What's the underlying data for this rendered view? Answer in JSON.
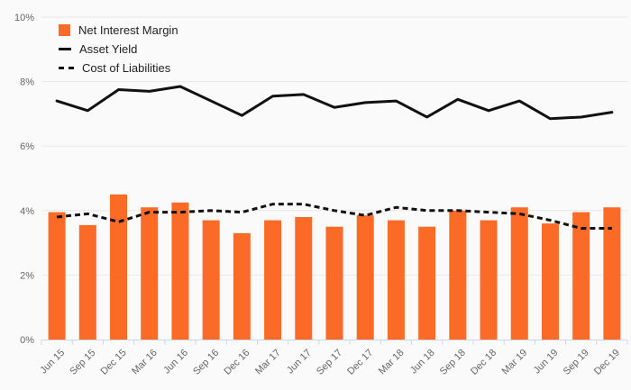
{
  "chart_data": {
    "type": "bar",
    "subtype": "combo-bar-line",
    "title": "",
    "xlabel": "",
    "ylabel": "",
    "ylim": [
      0,
      10
    ],
    "ytick_values": [
      0,
      2,
      4,
      6,
      8,
      10
    ],
    "ytick_labels": [
      "0%",
      "2%",
      "4%",
      "6%",
      "8%",
      "10%"
    ],
    "grid": true,
    "legend_position": "top-left",
    "categories": [
      "Jun 15",
      "Sep 15",
      "Dec 15",
      "Mar 16",
      "Jun 16",
      "Sep 16",
      "Dec 16",
      "Mar 17",
      "Jun 17",
      "Sep 17",
      "Dec 17",
      "Mar 18",
      "Jun 18",
      "Sep 18",
      "Dec 18",
      "Mar 19",
      "Jun 19",
      "Sep 19",
      "Dec 19"
    ],
    "series": [
      {
        "name": "Net Interest Margin",
        "type": "bar",
        "color": "#fb6a26",
        "values": [
          3.95,
          3.55,
          4.5,
          4.1,
          4.25,
          3.7,
          3.3,
          3.7,
          3.8,
          3.5,
          3.85,
          3.7,
          3.5,
          4.0,
          3.7,
          4.1,
          3.6,
          3.95,
          4.1
        ]
      },
      {
        "name": "Asset Yield",
        "type": "line",
        "style": "solid",
        "color": "#111111",
        "values": [
          7.4,
          7.1,
          7.75,
          7.7,
          7.85,
          7.4,
          6.95,
          7.55,
          7.6,
          7.2,
          7.35,
          7.4,
          6.9,
          7.45,
          7.1,
          7.4,
          6.85,
          6.9,
          7.05
        ]
      },
      {
        "name": "Cost of Liabilities",
        "type": "line",
        "style": "dashed",
        "color": "#111111",
        "values": [
          3.8,
          3.9,
          3.65,
          3.95,
          3.95,
          4.0,
          3.95,
          4.2,
          4.2,
          4.0,
          3.85,
          4.1,
          4.0,
          4.0,
          3.95,
          3.9,
          3.7,
          3.45,
          3.45
        ]
      }
    ],
    "colors": {
      "background": "#fafafa",
      "grid": "#e7e7e7",
      "axis": "#ccd6eb",
      "tick_label": "#666666",
      "legend_text": "#222222"
    }
  }
}
